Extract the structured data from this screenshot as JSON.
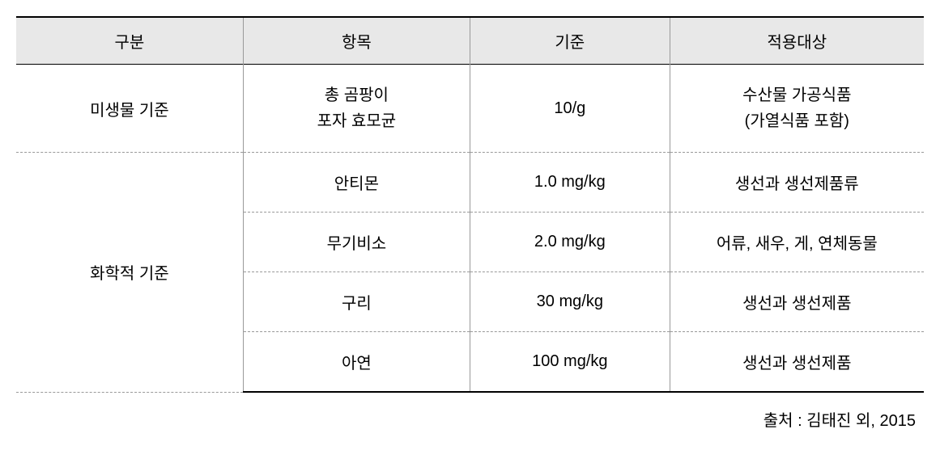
{
  "table": {
    "headers": [
      "구분",
      "항목",
      "기준",
      "적용대상"
    ],
    "header_bg": "#e8e8e8",
    "border_color": "#000000",
    "cell_border_color": "#999999",
    "background_color": "#ffffff",
    "font_size": 20,
    "columns": [
      {
        "width": "25%"
      },
      {
        "width": "25%"
      },
      {
        "width": "22%"
      },
      {
        "width": "28%"
      }
    ],
    "rows": [
      {
        "category": "미생물 기준",
        "item_line1": "총 곰팡이",
        "item_line2": "포자 효모균",
        "standard": "10/g",
        "target_line1": "수산물 가공식품",
        "target_line2": "(가열식품 포함)"
      },
      {
        "category": "화학적 기준",
        "subrows": [
          {
            "item": "안티몬",
            "standard": "1.0 mg/kg",
            "target": "생선과 생선제품류"
          },
          {
            "item": "무기비소",
            "standard": "2.0 mg/kg",
            "target": "어류, 새우, 게, 연체동물"
          },
          {
            "item": "구리",
            "standard": "30 mg/kg",
            "target": "생선과 생선제품"
          },
          {
            "item": "아연",
            "standard": "100 mg/kg",
            "target": "생선과 생선제품"
          }
        ]
      }
    ]
  },
  "source": "출처 : 김태진 외, 2015"
}
